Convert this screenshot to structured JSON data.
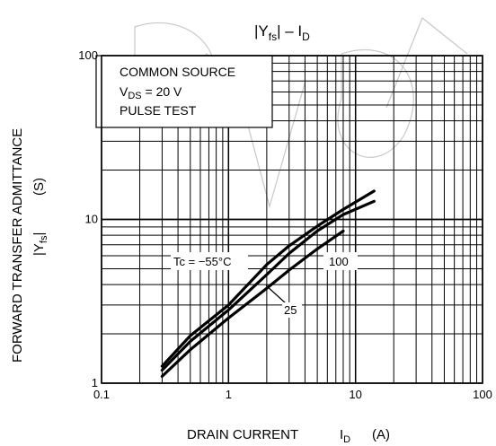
{
  "chart_data": {
    "type": "line",
    "title": "|Yfs| – ID",
    "title_parts": {
      "main": "|Y",
      "sub": "fs",
      "mid": "| – I",
      "sub2": "D"
    },
    "xlabel": "DRAIN CURRENT",
    "xlabel_symbol": "I",
    "xlabel_sub": "D",
    "xlabel_unit": "(A)",
    "ylabel_line1": "FORWARD TRANSFER ADMITTANCE",
    "ylabel_line2_main": "|Y",
    "ylabel_line2_sub": "fs",
    "ylabel_line2_end": "|",
    "ylabel_unit": "(S)",
    "x_scale": "log",
    "y_scale": "log",
    "xlim": [
      0.1,
      100
    ],
    "ylim": [
      1,
      100
    ],
    "x_ticks": [
      {
        "value": 0.1,
        "label": "0.1"
      },
      {
        "value": 1,
        "label": "1"
      },
      {
        "value": 10,
        "label": "10"
      },
      {
        "value": 100,
        "label": "100"
      }
    ],
    "y_ticks": [
      {
        "value": 1,
        "label": "1"
      },
      {
        "value": 10,
        "label": "10"
      },
      {
        "value": 100,
        "label": "100"
      }
    ],
    "grid": true,
    "conditions": {
      "line1": "COMMON SOURCE",
      "line2_main": "V",
      "line2_sub": "DS",
      "line2_end": " = 20 V",
      "line3": "PULSE TEST"
    },
    "series": [
      {
        "name": "Tc = −55°C",
        "x": [
          0.3,
          0.5,
          1,
          2,
          3,
          5,
          8,
          14
        ],
        "y": [
          1.27,
          1.95,
          3.0,
          5.3,
          6.9,
          9.1,
          11.5,
          14.9
        ]
      },
      {
        "name": "25",
        "x": [
          0.3,
          0.5,
          1,
          2,
          3,
          5,
          8,
          14
        ],
        "y": [
          1.2,
          1.8,
          2.8,
          4.6,
          6.2,
          8.5,
          10.7,
          12.9
        ]
      },
      {
        "name": "100",
        "x": [
          0.3,
          0.5,
          1,
          2,
          3,
          5,
          8
        ],
        "y": [
          1.1,
          1.6,
          2.5,
          3.8,
          4.9,
          6.6,
          8.5
        ]
      }
    ]
  }
}
